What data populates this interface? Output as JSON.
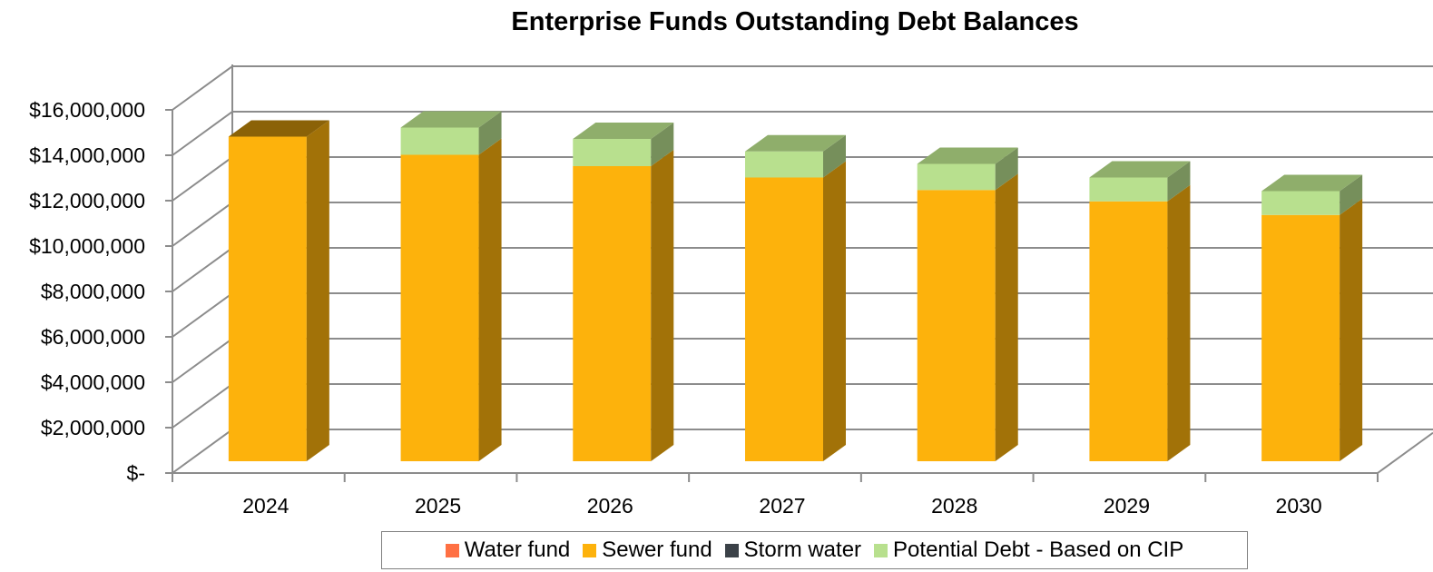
{
  "chart_data": {
    "type": "bar",
    "stacked": true,
    "three_d": true,
    "title": "Enterprise Funds Outstanding Debt Balances",
    "xlabel": "",
    "ylabel": "",
    "categories": [
      "2024",
      "2025",
      "2026",
      "2027",
      "2028",
      "2029",
      "2030"
    ],
    "ylim": [
      0,
      16000000
    ],
    "yticks": [
      0,
      2000000,
      4000000,
      6000000,
      8000000,
      10000000,
      12000000,
      14000000,
      16000000
    ],
    "ytick_labels": [
      "$-",
      "$2,000,000",
      "$4,000,000",
      "$6,000,000",
      "$8,000,000",
      "$10,000,000",
      "$12,000,000",
      "$14,000,000",
      "$16,000,000"
    ],
    "grid": true,
    "legend_position": "bottom",
    "series": [
      {
        "name": "Water fund",
        "color": "#ff7043",
        "values": [
          0,
          0,
          0,
          0,
          0,
          0,
          0
        ]
      },
      {
        "name": "Sewer fund",
        "color": "#fdb20c",
        "values": [
          14300000,
          13500000,
          13000000,
          12500000,
          11950000,
          11450000,
          10850000
        ]
      },
      {
        "name": "Storm water",
        "color": "#3b4148",
        "values": [
          0,
          0,
          0,
          0,
          0,
          0,
          0
        ]
      },
      {
        "name": "Potential Debt - Based on CIP",
        "color": "#b8e08e",
        "values": [
          0,
          1200000,
          1200000,
          1150000,
          1150000,
          1050000,
          1050000
        ]
      }
    ]
  }
}
